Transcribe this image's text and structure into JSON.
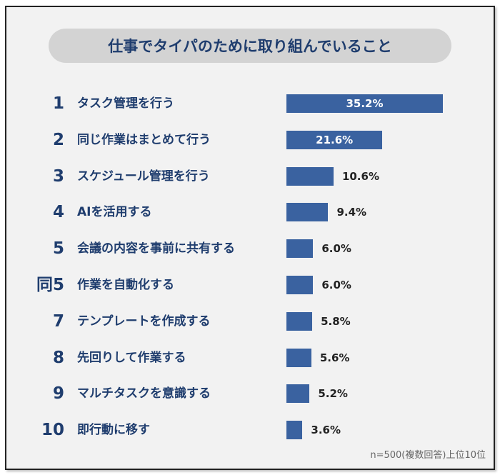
{
  "chart_data": {
    "type": "bar",
    "orientation": "horizontal",
    "title": "仕事でタイパのために取り組んでいること",
    "ranks": [
      "1",
      "2",
      "3",
      "4",
      "5",
      "同5",
      "7",
      "8",
      "9",
      "10"
    ],
    "categories": [
      "タスク管理を行う",
      "同じ作業はまとめて行う",
      "スケジュール管理を行う",
      "AIを活用する",
      "会議の内容を事前に共有する",
      "作業を自動化する",
      "テンプレートを作成する",
      "先回りして作業する",
      "マルチタスクを意識する",
      "即行動に移す"
    ],
    "values": [
      35.2,
      21.6,
      10.6,
      9.4,
      6.0,
      6.0,
      5.8,
      5.6,
      5.2,
      3.6
    ],
    "value_labels": [
      "35.2%",
      "21.6%",
      "10.6%",
      "9.4%",
      "6.0%",
      "6.0%",
      "5.8%",
      "5.6%",
      "5.2%",
      "3.6%"
    ],
    "unit": "%",
    "note": "n=500(複数回答)上位10位",
    "bar_color": "#3a62a0",
    "text_color": "#1f3d6e",
    "grid": false
  }
}
